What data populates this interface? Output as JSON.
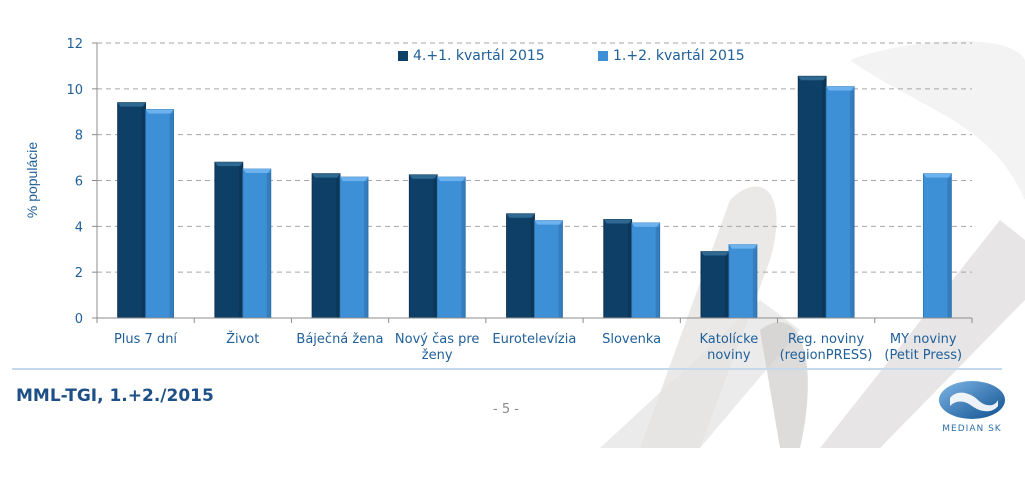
{
  "colors": {
    "series_dark": "#0e3f66",
    "series_light": "#3d8fd6",
    "text": "#1f5f99",
    "grid": "#a6a6a6"
  },
  "chart_data": {
    "type": "bar",
    "title": "",
    "xlabel": "",
    "ylabel": "% populácie",
    "ylim": [
      0,
      12
    ],
    "yticks": [
      0,
      2,
      4,
      6,
      8,
      10,
      12
    ],
    "grid": true,
    "legend_position": "top-center",
    "categories": [
      [
        "Plus 7 dní"
      ],
      [
        "Život"
      ],
      [
        "Báječná žena"
      ],
      [
        "Nový čas pre",
        "ženy"
      ],
      [
        "Eurotelevízia"
      ],
      [
        "Slovenka"
      ],
      [
        "Katolícke",
        "noviny"
      ],
      [
        "Reg. noviny",
        "(regionPRESS)"
      ],
      [
        "MY noviny",
        "(Petit Press)"
      ]
    ],
    "series": [
      {
        "name": "4.+1. kvartál 2015",
        "values": [
          9.4,
          6.8,
          6.3,
          6.25,
          4.55,
          4.3,
          2.9,
          10.55,
          null
        ]
      },
      {
        "name": "1.+2. kvartál 2015",
        "values": [
          9.1,
          6.5,
          6.15,
          6.15,
          4.25,
          4.15,
          3.2,
          10.1,
          6.3
        ]
      }
    ]
  },
  "footer": {
    "source": "MML-TGI, 1.+2./2015",
    "page_number": "- 5 -",
    "logo_text": "MEDIAN SK"
  }
}
